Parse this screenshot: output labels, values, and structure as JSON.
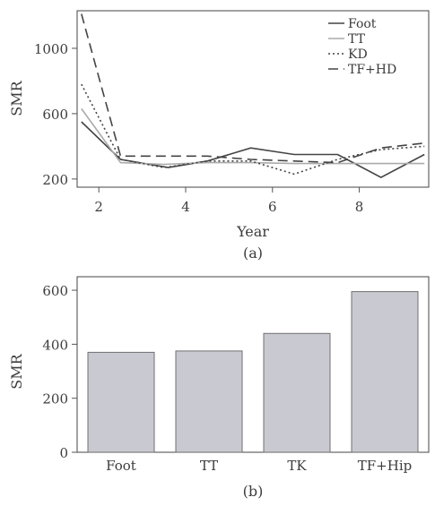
{
  "chart_data": [
    {
      "type": "line",
      "caption": "(a)",
      "xlabel": "Year",
      "ylabel": "SMR",
      "xlim": [
        1.5,
        9.6
      ],
      "ylim": [
        150,
        1230
      ],
      "xticks": [
        2,
        4,
        6,
        8
      ],
      "yticks": [
        200,
        600,
        1000
      ],
      "legend_position": "top-right",
      "series": [
        {
          "name": "Foot",
          "dash": "solid",
          "color": "#444444",
          "x": [
            1.6,
            2.5,
            3.6,
            4.5,
            5.5,
            6.5,
            7.5,
            8.5,
            9.5
          ],
          "y": [
            550,
            320,
            270,
            310,
            390,
            350,
            350,
            210,
            350
          ]
        },
        {
          "name": "TT",
          "dash": "solid",
          "color": "#aaaaaa",
          "x": [
            1.6,
            2.5,
            3.5,
            4.5,
            5.5,
            6.5,
            7.5,
            8.5,
            9.5
          ],
          "y": [
            630,
            300,
            290,
            300,
            300,
            295,
            295,
            295,
            295
          ]
        },
        {
          "name": "KD",
          "dash": "dotted",
          "color": "#444444",
          "x": [
            1.6,
            2.5,
            3.5,
            4.5,
            5.5,
            6.5,
            7.5,
            8.5,
            9.5
          ],
          "y": [
            780,
            320,
            270,
            310,
            310,
            230,
            320,
            380,
            400
          ]
        },
        {
          "name": "TF+HD",
          "dash": "dashed",
          "color": "#444444",
          "x": [
            1.6,
            2.5,
            3.5,
            4.5,
            5.5,
            6.5,
            7.5,
            8.5,
            9.5
          ],
          "y": [
            1210,
            340,
            340,
            340,
            320,
            310,
            300,
            390,
            420
          ]
        }
      ]
    },
    {
      "type": "bar",
      "caption": "(b)",
      "xlabel": "",
      "ylabel": "SMR",
      "ylim": [
        0,
        650
      ],
      "yticks": [
        0,
        200,
        400,
        600
      ],
      "categories": [
        "Foot",
        "TT",
        "TK",
        "TF+Hip"
      ],
      "values": [
        370,
        375,
        440,
        595
      ],
      "bar_color": "#c9c9d2"
    }
  ]
}
